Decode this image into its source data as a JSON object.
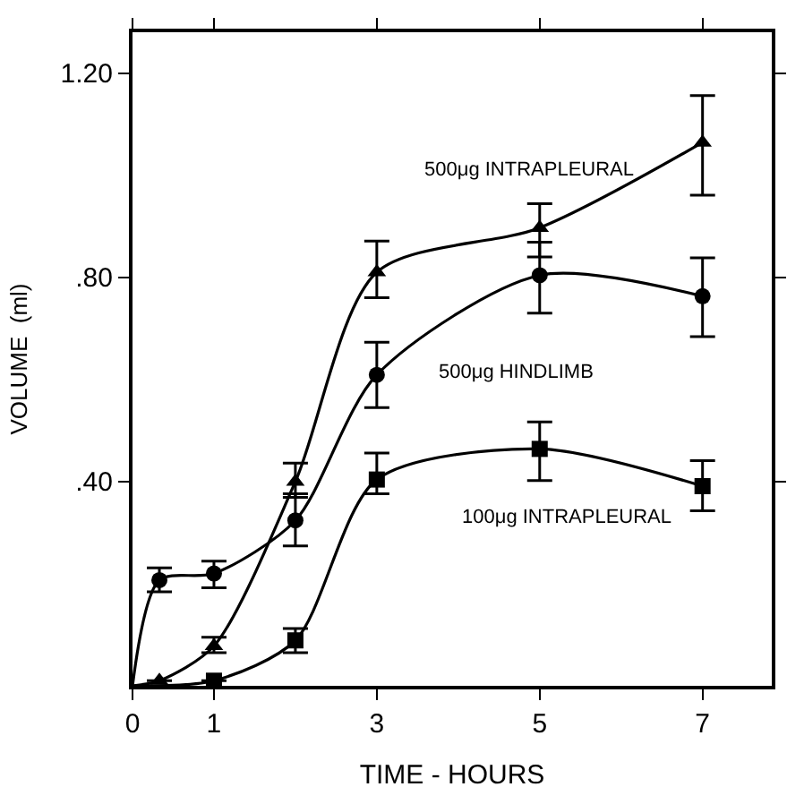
{
  "chart_data": {
    "type": "scatter",
    "xlabel": "TIME - HOURS",
    "ylabel": "VOLUME  (ml)",
    "xlim": [
      0,
      7.85
    ],
    "xticks": [
      0,
      1,
      3,
      5,
      7
    ],
    "ylim": [
      0,
      1.28
    ],
    "yticks": [
      {
        "value": 0.4,
        "label": ".40"
      },
      {
        "value": 0.8,
        "label": ".80"
      },
      {
        "value": 1.2,
        "label": "1.20"
      }
    ],
    "series": [
      {
        "marker": "circle",
        "color": "#000000",
        "x": [
          0.33,
          1,
          2,
          3,
          5,
          7
        ],
        "values": [
          0.207,
          0.22,
          0.324,
          0.609,
          0.804,
          0.763
        ],
        "errors": [
          [
            0.184,
            0.231
          ],
          [
            0.192,
            0.244
          ],
          [
            0.274,
            0.376
          ],
          [
            0.545,
            0.673
          ],
          [
            0.73,
            0.869
          ],
          [
            0.684,
            0.838
          ]
        ]
      },
      {
        "marker": "triangle",
        "color": "#000000",
        "x": [
          0.33,
          1,
          2,
          3,
          5,
          7
        ],
        "values": [
          0.01,
          0.078,
          0.4,
          0.81,
          0.897,
          1.064
        ],
        "errors": [
          null,
          [
            0.065,
            0.095
          ],
          [
            0.369,
            0.436
          ],
          [
            0.76,
            0.871
          ],
          [
            0.84,
            0.944
          ],
          [
            0.961,
            1.156
          ]
        ]
      },
      {
        "marker": "square",
        "color": "#000000",
        "x": [
          1,
          2,
          3,
          5,
          7
        ],
        "values": [
          0.01,
          0.089,
          0.404,
          0.464,
          0.391
        ],
        "errors": [
          null,
          [
            0.065,
            0.112
          ],
          [
            0.376,
            0.456
          ],
          [
            0.402,
            0.517
          ],
          [
            0.343,
            0.441
          ]
        ]
      },
      {
        "type": "line",
        "color": "#000000",
        "x": [
          0,
          0.33,
          1,
          2,
          3,
          5,
          7
        ],
        "values": [
          0,
          0.207,
          0.22,
          0.324,
          0.609,
          0.804,
          0.763
        ]
      },
      {
        "type": "line",
        "color": "#000000",
        "x": [
          0,
          0.33,
          1,
          2,
          3,
          5,
          7
        ],
        "values": [
          0,
          0.01,
          0.078,
          0.4,
          0.81,
          0.897,
          1.064
        ]
      },
      {
        "type": "line",
        "color": "#000000",
        "x": [
          0,
          1,
          2,
          3,
          5,
          7
        ],
        "values": [
          0,
          0.01,
          0.089,
          0.404,
          0.464,
          0.391
        ]
      }
    ],
    "annotations": [
      "500μg INTRAPLEURAL",
      "500μg HINDLIMB",
      "100μg INTRAPLEURAL"
    ]
  }
}
